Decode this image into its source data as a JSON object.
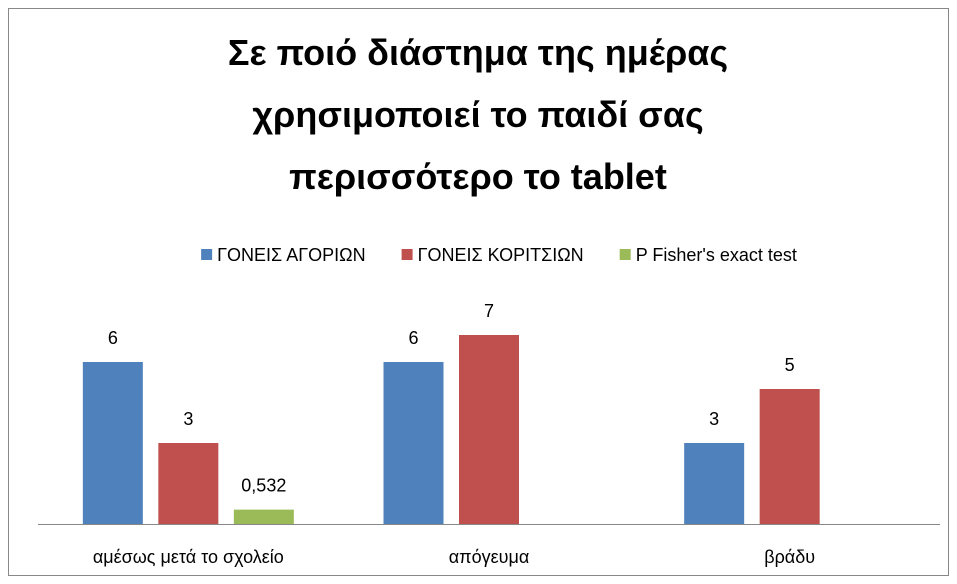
{
  "chart_data": {
    "type": "bar",
    "title": "Σε ποιό διάστημα της ημέρας χρησιμοποιεί το παιδί σας περισσότερο το tablet",
    "categories": [
      "αμέσως μετά το σχολείο",
      "απόγευμα",
      "βράδυ"
    ],
    "series": [
      {
        "name": "ΓΟΝΕΙΣ ΑΓΟΡΙΩΝ",
        "color": "#4f81bd",
        "values": [
          6,
          6,
          3
        ]
      },
      {
        "name": "ΓΟΝΕΙΣ ΚΟΡΙΤΣΙΩΝ",
        "color": "#c0504d",
        "values": [
          3,
          7,
          5
        ]
      },
      {
        "name": "P Fisher's exact test",
        "color": "#9bbb59",
        "values": [
          0.532,
          null,
          null
        ],
        "value_labels": [
          "0,532",
          null,
          null
        ]
      }
    ],
    "ylim": [
      0,
      8
    ],
    "legend": "top"
  }
}
